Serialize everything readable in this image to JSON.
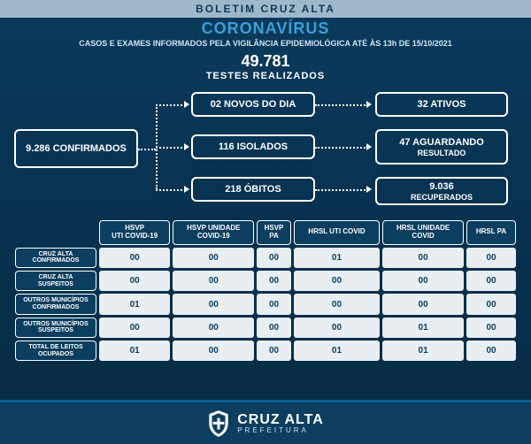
{
  "colors": {
    "bg_top": "#0a3a5c",
    "bg_bottom": "#062a44",
    "banner_bg": "#9fb8c9",
    "banner_fg": "#0a3a5c",
    "title": "#3aa0d8",
    "subtitle": "#d0e5f1",
    "white": "#ffffff",
    "th_bg": "#0b3e5f",
    "cell_bg": "#e9eef2",
    "cell_fg": "#0b3e5f",
    "footer_border": "#0e5d8f"
  },
  "header": {
    "banner": "BOLETIM CRUZ ALTA",
    "title": "CORONAVÍRUS",
    "subtitle": "CASOS E EXAMES INFORMADOS PELA VIGILÂNCIA EPIDEMIOLÓGICA ATÉ ÀS 13h DE 15/10/2021"
  },
  "tests": {
    "number": "49.781",
    "label": "TESTES REALIZADOS"
  },
  "flow": {
    "confirmed": "9.286 CONFIRMADOS",
    "mid": [
      "02 NOVOS DO DIA",
      "116 ISOLADOS",
      "218 ÓBITOS"
    ],
    "right": [
      {
        "line1": "32 ATIVOS",
        "line2": ""
      },
      {
        "line1": "47 AGUARDANDO",
        "line2": "RESULTADO"
      },
      {
        "line1": "9.036",
        "line2": "RECUPERADOS"
      }
    ]
  },
  "table": {
    "columns": [
      "HSVP\nUTI COVID-19",
      "HSVP UNIDADE\nCOVID-19",
      "HSVP\nPA",
      "HRSL UTI COVID",
      "HRSL UNIDADE\nCOVID",
      "HRSL PA"
    ],
    "rows": [
      {
        "label": "CRUZ ALTA\nCONFIRMADOS",
        "cells": [
          "00",
          "00",
          "00",
          "01",
          "00",
          "00"
        ]
      },
      {
        "label": "CRUZ ALTA\nSUSPEITOS",
        "cells": [
          "00",
          "00",
          "00",
          "00",
          "00",
          "00"
        ]
      },
      {
        "label": "OUTROS MUNICÍPIOS\nCONFIRMADOS",
        "cells": [
          "01",
          "00",
          "00",
          "00",
          "00",
          "00"
        ]
      },
      {
        "label": "OUTROS MUNICÍPIOS\nSUSPEITOS",
        "cells": [
          "00",
          "00",
          "00",
          "00",
          "01",
          "00"
        ]
      },
      {
        "label": "TOTAL DE LEITOS\nOCUPADOS",
        "cells": [
          "01",
          "00",
          "00",
          "01",
          "01",
          "00"
        ]
      }
    ]
  },
  "footer": {
    "city": "CRUZ ALTA",
    "sub": "PREFEITURA"
  }
}
